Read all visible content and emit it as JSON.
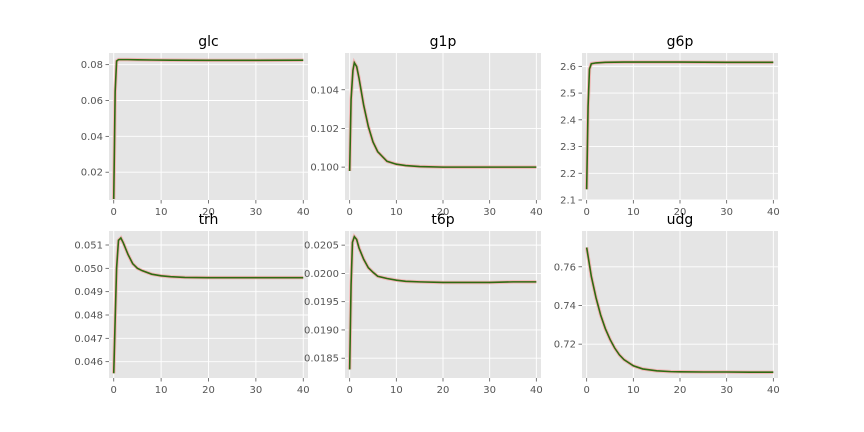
{
  "chart_data": [
    {
      "type": "line",
      "title": "glc",
      "xlim": [
        -1,
        41
      ],
      "ylim": [
        0.0045,
        0.0865
      ],
      "xticks": [
        "0",
        "10",
        "20",
        "30",
        "40"
      ],
      "yticks": [
        "0.02",
        "0.04",
        "0.06",
        "0.08"
      ],
      "series": [
        {
          "x": [
            0,
            0.3,
            0.6,
            1,
            2,
            3,
            5,
            8,
            12,
            20,
            30,
            40
          ],
          "y": [
            0.005,
            0.065,
            0.082,
            0.0828,
            0.0828,
            0.0828,
            0.0827,
            0.0826,
            0.0825,
            0.0824,
            0.0824,
            0.0825
          ]
        }
      ]
    },
    {
      "type": "line",
      "title": "g1p",
      "xlim": [
        -1,
        41
      ],
      "ylim": [
        0.0983,
        0.1059
      ],
      "xticks": [
        "0",
        "10",
        "20",
        "30",
        "40"
      ],
      "yticks": [
        "0.100",
        "0.102",
        "0.104"
      ],
      "series": [
        {
          "x": [
            0,
            0.3,
            0.7,
            1,
            1.5,
            2,
            3,
            4,
            5,
            6,
            8,
            10,
            12,
            15,
            20,
            25,
            30,
            40
          ],
          "y": [
            0.0998,
            0.1035,
            0.105,
            0.1054,
            0.1052,
            0.1046,
            0.1032,
            0.1021,
            0.1013,
            0.1008,
            0.1003,
            0.10015,
            0.10008,
            0.10003,
            0.1,
            0.1,
            0.1,
            0.1
          ]
        }
      ]
    },
    {
      "type": "line",
      "title": "g6p",
      "xlim": [
        -1,
        41
      ],
      "ylim": [
        2.1,
        2.65
      ],
      "xticks": [
        "0",
        "10",
        "20",
        "30",
        "40"
      ],
      "yticks": [
        "2.1",
        "2.2",
        "2.3",
        "2.4",
        "2.5",
        "2.6"
      ],
      "series": [
        {
          "x": [
            0,
            0.3,
            0.6,
            1,
            2,
            4,
            8,
            12,
            20,
            30,
            40
          ],
          "y": [
            2.14,
            2.45,
            2.59,
            2.61,
            2.613,
            2.615,
            2.616,
            2.616,
            2.616,
            2.615,
            2.615
          ]
        }
      ]
    },
    {
      "type": "line",
      "title": "trh",
      "xlim": [
        -1,
        41
      ],
      "ylim": [
        0.0453,
        0.0516
      ],
      "xticks": [
        "0",
        "10",
        "20",
        "30",
        "40"
      ],
      "yticks": [
        "0.046",
        "0.047",
        "0.048",
        "0.049",
        "0.050",
        "0.051"
      ],
      "series": [
        {
          "x": [
            0,
            0.3,
            0.6,
            1,
            1.5,
            2,
            3,
            4,
            5,
            6,
            8,
            10,
            12,
            15,
            20,
            25,
            30,
            40
          ],
          "y": [
            0.0455,
            0.0478,
            0.05,
            0.0512,
            0.0513,
            0.0511,
            0.0506,
            0.0502,
            0.05,
            0.0499,
            0.04975,
            0.04968,
            0.04964,
            0.04961,
            0.0496,
            0.0496,
            0.0496,
            0.0496
          ]
        }
      ]
    },
    {
      "type": "line",
      "title": "t6p",
      "xlim": [
        -1,
        41
      ],
      "ylim": [
        0.01815,
        0.02075
      ],
      "xticks": [
        "0",
        "10",
        "20",
        "30",
        "40"
      ],
      "yticks": [
        "0.0185",
        "0.0190",
        "0.0195",
        "0.0200",
        "0.0205"
      ],
      "series": [
        {
          "x": [
            0,
            0.3,
            0.6,
            1,
            1.5,
            2,
            3,
            4,
            5,
            6,
            8,
            10,
            12,
            15,
            20,
            25,
            30,
            35,
            40
          ],
          "y": [
            0.0183,
            0.0198,
            0.02055,
            0.02065,
            0.0206,
            0.02045,
            0.02025,
            0.0201,
            0.02002,
            0.01995,
            0.01991,
            0.01988,
            0.01986,
            0.01985,
            0.01984,
            0.01984,
            0.01984,
            0.01985,
            0.01985
          ]
        }
      ]
    },
    {
      "type": "line",
      "title": "udg",
      "xlim": [
        -1,
        41
      ],
      "ylim": [
        0.7025,
        0.7785
      ],
      "xticks": [
        "0",
        "10",
        "20",
        "30",
        "40"
      ],
      "yticks": [
        "0.72",
        "0.74",
        "0.76"
      ],
      "series": [
        {
          "x": [
            0,
            1,
            2,
            3,
            4,
            5,
            6,
            7,
            8,
            10,
            12,
            15,
            18,
            20,
            25,
            30,
            35,
            40
          ],
          "y": [
            0.77,
            0.755,
            0.744,
            0.735,
            0.728,
            0.7225,
            0.718,
            0.7145,
            0.712,
            0.7088,
            0.7072,
            0.7062,
            0.7058,
            0.7057,
            0.7056,
            0.7056,
            0.7055,
            0.7055
          ]
        }
      ]
    }
  ]
}
